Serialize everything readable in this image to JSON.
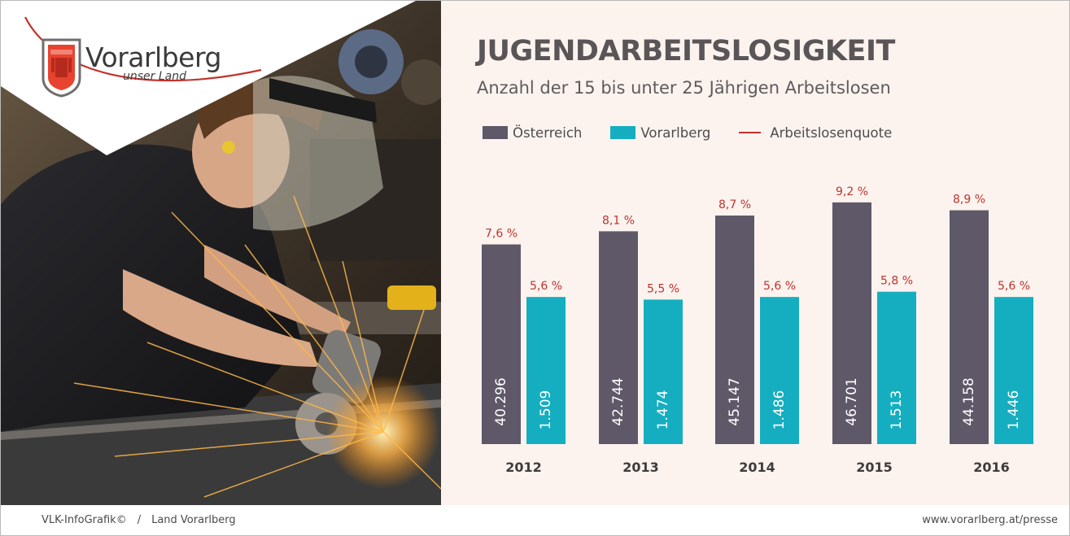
{
  "logo": {
    "name": "Vorarlberg",
    "tagline": "unser Land"
  },
  "header": {
    "title": "JUGENDARBEITSLOSIGKEIT",
    "subtitle": "Anzahl der 15 bis unter 25 Jährigen Arbeitslosen"
  },
  "legend": {
    "austria": "Österreich",
    "vorarlberg": "Vorarlberg",
    "rate": "Arbeitslosenquote"
  },
  "colors": {
    "austria": "#5f5869",
    "vorarlberg": "#15aec0",
    "rate": "#c0332d",
    "background": "#fcf3ef"
  },
  "chart_data": {
    "type": "bar",
    "categories": [
      "2012",
      "2013",
      "2014",
      "2015",
      "2016"
    ],
    "series": [
      {
        "name": "Österreich",
        "values": [
          40296,
          42744,
          45147,
          46701,
          44158
        ],
        "labels": [
          "40.296",
          "42.744",
          "45.147",
          "46.701",
          "44.158"
        ],
        "rate_labels": [
          "7,6 %",
          "8,1 %",
          "8,7 %",
          "9,2 %",
          "8,9 %"
        ],
        "rates": [
          7.6,
          8.1,
          8.7,
          9.2,
          8.9
        ]
      },
      {
        "name": "Vorarlberg",
        "values": [
          1509,
          1474,
          1486,
          1513,
          1446
        ],
        "labels": [
          "1.509",
          "1.474",
          "1.486",
          "1.513",
          "1.446"
        ],
        "rate_labels": [
          "5,6 %",
          "5,5 %",
          "5,6 %",
          "5,8 %",
          "5,6 %"
        ],
        "rates": [
          5.6,
          5.5,
          5.6,
          5.8,
          5.6
        ]
      }
    ],
    "title": "JUGENDARBEITSLOSIGKEIT",
    "subtitle": "Anzahl der 15 bis unter 25 Jährigen Arbeitslosen",
    "bar_height_basis": "Arbeitslosenquote",
    "axes_visible": false,
    "grid": false,
    "legend_position": "top-left"
  },
  "footer": {
    "left_source": "VLK-InfoGrafik©",
    "left_separator": "/",
    "left_org": "Land Vorarlberg",
    "right_url": "www.vorarlberg.at/presse"
  }
}
